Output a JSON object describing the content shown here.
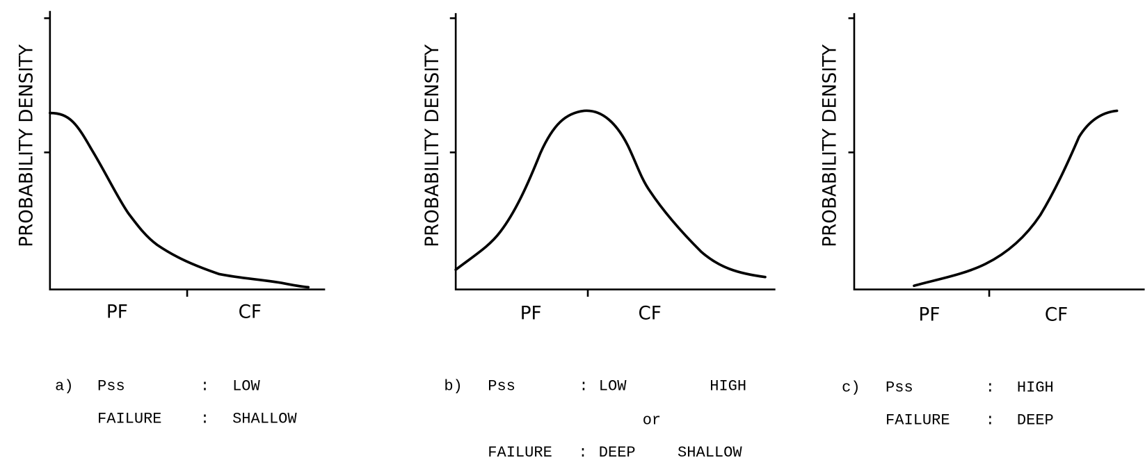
{
  "panels": [
    {
      "y_label": "PROBABILITY DENSITY",
      "x_labels": [
        "PF",
        "CF"
      ],
      "caption": {
        "letter": "a)",
        "rows": [
          [
            "Pss",
            ":",
            "LOW"
          ],
          [
            "FAILURE",
            ":",
            "SHALLOW"
          ]
        ]
      }
    },
    {
      "y_label": "PROBABILITY DENSITY",
      "x_labels": [
        "PF",
        "CF"
      ],
      "caption": {
        "letter": "b)",
        "rows": [
          [
            "Pss",
            ":",
            "LOW",
            "HIGH"
          ],
          [
            "or"
          ],
          [
            "FAILURE",
            ":",
            "DEEP",
            "SHALLOW"
          ]
        ]
      }
    },
    {
      "y_label": "PROBABILITY DENSITY",
      "x_labels": [
        "PF",
        "CF"
      ],
      "caption": {
        "letter": "c)",
        "rows": [
          [
            "Pss",
            ":",
            "HIGH"
          ],
          [
            "FAILURE",
            ":",
            "DEEP"
          ]
        ]
      }
    }
  ]
}
